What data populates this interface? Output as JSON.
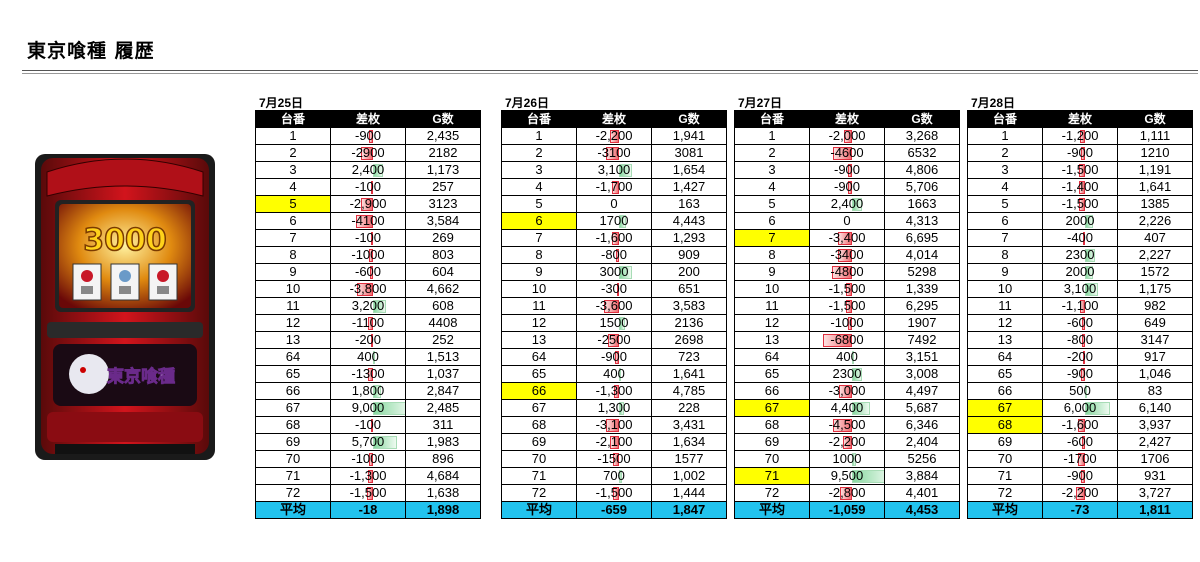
{
  "title": "東京喰種 履歴",
  "headers": {
    "no": "台番",
    "diff": "差枚",
    "g": "G数"
  },
  "avg_label": "平均",
  "colors": {
    "highlight": "#ffff00",
    "avg_row": "#22c3ee",
    "neg_bar": "#f06b70",
    "pos_bar": "#88d8a0"
  },
  "machine_art": {
    "reel_text": "3000",
    "logo_text": "東京喰種"
  },
  "days": [
    {
      "date": "7月25日",
      "rows": [
        {
          "no": "1",
          "diff": "-900",
          "g": "2,435",
          "v": -900,
          "hl": false
        },
        {
          "no": "2",
          "diff": "-2900",
          "g": "2182",
          "v": -2900,
          "hl": false
        },
        {
          "no": "3",
          "diff": "2,400",
          "g": "1,173",
          "v": 2400,
          "hl": false
        },
        {
          "no": "4",
          "diff": "-100",
          "g": "257",
          "v": -100,
          "hl": false
        },
        {
          "no": "5",
          "diff": "-2,900",
          "g": "3123",
          "v": -2900,
          "hl": true
        },
        {
          "no": "6",
          "diff": "-4100",
          "g": "3,584",
          "v": -4100,
          "hl": false
        },
        {
          "no": "7",
          "diff": "-100",
          "g": "269",
          "v": -100,
          "hl": false
        },
        {
          "no": "8",
          "diff": "-1000",
          "g": "803",
          "v": -1000,
          "hl": false
        },
        {
          "no": "9",
          "diff": "-600",
          "g": "604",
          "v": -600,
          "hl": false
        },
        {
          "no": "10",
          "diff": "-3,800",
          "g": "4,662",
          "v": -3800,
          "hl": false
        },
        {
          "no": "11",
          "diff": "3,200",
          "g": "608",
          "v": 3200,
          "hl": false
        },
        {
          "no": "12",
          "diff": "-1100",
          "g": "4408",
          "v": -1100,
          "hl": false
        },
        {
          "no": "13",
          "diff": "-200",
          "g": "252",
          "v": -200,
          "hl": false
        },
        {
          "no": "64",
          "diff": "400",
          "g": "1,513",
          "v": 400,
          "hl": false
        },
        {
          "no": "65",
          "diff": "-1300",
          "g": "1,037",
          "v": -1300,
          "hl": false
        },
        {
          "no": "66",
          "diff": "1,800",
          "g": "2,847",
          "v": 1800,
          "hl": false
        },
        {
          "no": "67",
          "diff": "9,000",
          "g": "2,485",
          "v": 9000,
          "hl": false
        },
        {
          "no": "68",
          "diff": "-100",
          "g": "311",
          "v": -100,
          "hl": false
        },
        {
          "no": "69",
          "diff": "5,700",
          "g": "1,983",
          "v": 5700,
          "hl": false
        },
        {
          "no": "70",
          "diff": "-1000",
          "g": "896",
          "v": -1000,
          "hl": false
        },
        {
          "no": "71",
          "diff": "-1,300",
          "g": "4,684",
          "v": -1300,
          "hl": false
        },
        {
          "no": "72",
          "diff": "-1,500",
          "g": "1,638",
          "v": -1500,
          "hl": false
        }
      ],
      "avg": {
        "diff": "-18",
        "g": "1,898"
      }
    },
    {
      "date": "7月26日",
      "rows": [
        {
          "no": "1",
          "diff": "-2,200",
          "g": "1,941",
          "v": -2200,
          "hl": false
        },
        {
          "no": "2",
          "diff": "-3100",
          "g": "3081",
          "v": -3100,
          "hl": false
        },
        {
          "no": "3",
          "diff": "3,100",
          "g": "1,654",
          "v": 3100,
          "hl": false
        },
        {
          "no": "4",
          "diff": "-1,700",
          "g": "1,427",
          "v": -1700,
          "hl": false
        },
        {
          "no": "5",
          "diff": "0",
          "g": "163",
          "v": 0,
          "hl": false
        },
        {
          "no": "6",
          "diff": "1700",
          "g": "4,443",
          "v": 1700,
          "hl": true
        },
        {
          "no": "7",
          "diff": "-1,600",
          "g": "1,293",
          "v": -1600,
          "hl": false
        },
        {
          "no": "8",
          "diff": "-800",
          "g": "909",
          "v": -800,
          "hl": false
        },
        {
          "no": "9",
          "diff": "3000",
          "g": "200",
          "v": 3000,
          "hl": false
        },
        {
          "no": "10",
          "diff": "-300",
          "g": "651",
          "v": -300,
          "hl": false
        },
        {
          "no": "11",
          "diff": "-3,600",
          "g": "3,583",
          "v": -3600,
          "hl": false
        },
        {
          "no": "12",
          "diff": "1500",
          "g": "2136",
          "v": 1500,
          "hl": false
        },
        {
          "no": "13",
          "diff": "-2500",
          "g": "2698",
          "v": -2500,
          "hl": false
        },
        {
          "no": "64",
          "diff": "-900",
          "g": "723",
          "v": -900,
          "hl": false
        },
        {
          "no": "65",
          "diff": "400",
          "g": "1,641",
          "v": 400,
          "hl": false
        },
        {
          "no": "66",
          "diff": "-1,300",
          "g": "4,785",
          "v": -1300,
          "hl": true
        },
        {
          "no": "67",
          "diff": "1,300",
          "g": "228",
          "v": 1300,
          "hl": false
        },
        {
          "no": "68",
          "diff": "-3,100",
          "g": "3,431",
          "v": -3100,
          "hl": false
        },
        {
          "no": "69",
          "diff": "-2,100",
          "g": "1,634",
          "v": -2100,
          "hl": false
        },
        {
          "no": "70",
          "diff": "-1500",
          "g": "1577",
          "v": -1500,
          "hl": false
        },
        {
          "no": "71",
          "diff": "700",
          "g": "1,002",
          "v": 700,
          "hl": false
        },
        {
          "no": "72",
          "diff": "-1,500",
          "g": "1,444",
          "v": -1500,
          "hl": false
        }
      ],
      "avg": {
        "diff": "-659",
        "g": "1,847"
      }
    },
    {
      "date": "7月27日",
      "rows": [
        {
          "no": "1",
          "diff": "-2,000",
          "g": "3,268",
          "v": -2000,
          "hl": false
        },
        {
          "no": "2",
          "diff": "-4600",
          "g": "6532",
          "v": -4600,
          "hl": false
        },
        {
          "no": "3",
          "diff": "-900",
          "g": "4,806",
          "v": -900,
          "hl": false
        },
        {
          "no": "4",
          "diff": "-900",
          "g": "5,706",
          "v": -900,
          "hl": false
        },
        {
          "no": "5",
          "diff": "2,400",
          "g": "1663",
          "v": 2400,
          "hl": false
        },
        {
          "no": "6",
          "diff": "0",
          "g": "4,313",
          "v": 0,
          "hl": false
        },
        {
          "no": "7",
          "diff": "-3,400",
          "g": "6,695",
          "v": -3400,
          "hl": true
        },
        {
          "no": "8",
          "diff": "-3400",
          "g": "4,014",
          "v": -3400,
          "hl": false
        },
        {
          "no": "9",
          "diff": "-4800",
          "g": "5298",
          "v": -4800,
          "hl": false
        },
        {
          "no": "10",
          "diff": "-1,500",
          "g": "1,339",
          "v": -1500,
          "hl": false
        },
        {
          "no": "11",
          "diff": "-1,500",
          "g": "6,295",
          "v": -1500,
          "hl": false
        },
        {
          "no": "12",
          "diff": "-1000",
          "g": "1907",
          "v": -1000,
          "hl": false
        },
        {
          "no": "13",
          "diff": "-6800",
          "g": "7492",
          "v": -6800,
          "hl": false
        },
        {
          "no": "64",
          "diff": "400",
          "g": "3,151",
          "v": 400,
          "hl": false
        },
        {
          "no": "65",
          "diff": "2300",
          "g": "3,008",
          "v": 2300,
          "hl": false
        },
        {
          "no": "66",
          "diff": "-3,000",
          "g": "4,497",
          "v": -3000,
          "hl": false
        },
        {
          "no": "67",
          "diff": "4,400",
          "g": "5,687",
          "v": 4400,
          "hl": true
        },
        {
          "no": "68",
          "diff": "-4,500",
          "g": "6,346",
          "v": -4500,
          "hl": false
        },
        {
          "no": "69",
          "diff": "-2,200",
          "g": "2,404",
          "v": -2200,
          "hl": false
        },
        {
          "no": "70",
          "diff": "1000",
          "g": "5256",
          "v": 1000,
          "hl": false
        },
        {
          "no": "71",
          "diff": "9,500",
          "g": "3,884",
          "v": 9500,
          "hl": true
        },
        {
          "no": "72",
          "diff": "-2,800",
          "g": "4,401",
          "v": -2800,
          "hl": false
        }
      ],
      "avg": {
        "diff": "-1,059",
        "g": "4,453"
      }
    },
    {
      "date": "7月28日",
      "rows": [
        {
          "no": "1",
          "diff": "-1,200",
          "g": "1,111",
          "v": -1200,
          "hl": false
        },
        {
          "no": "2",
          "diff": "-900",
          "g": "1210",
          "v": -900,
          "hl": false
        },
        {
          "no": "3",
          "diff": "-1,500",
          "g": "1,191",
          "v": -1500,
          "hl": false
        },
        {
          "no": "4",
          "diff": "-1,400",
          "g": "1,641",
          "v": -1400,
          "hl": false
        },
        {
          "no": "5",
          "diff": "-1,500",
          "g": "1385",
          "v": -1500,
          "hl": false
        },
        {
          "no": "6",
          "diff": "2000",
          "g": "2,226",
          "v": 2000,
          "hl": false
        },
        {
          "no": "7",
          "diff": "-400",
          "g": "407",
          "v": -400,
          "hl": false
        },
        {
          "no": "8",
          "diff": "2300",
          "g": "2,227",
          "v": 2300,
          "hl": false
        },
        {
          "no": "9",
          "diff": "2000",
          "g": "1572",
          "v": 2000,
          "hl": false
        },
        {
          "no": "10",
          "diff": "3,100",
          "g": "1,175",
          "v": 3100,
          "hl": false
        },
        {
          "no": "11",
          "diff": "-1,100",
          "g": "982",
          "v": -1100,
          "hl": false
        },
        {
          "no": "12",
          "diff": "-600",
          "g": "649",
          "v": -600,
          "hl": false
        },
        {
          "no": "13",
          "diff": "-800",
          "g": "3147",
          "v": -800,
          "hl": false
        },
        {
          "no": "64",
          "diff": "-200",
          "g": "917",
          "v": -200,
          "hl": false
        },
        {
          "no": "65",
          "diff": "-900",
          "g": "1,046",
          "v": -900,
          "hl": false
        },
        {
          "no": "66",
          "diff": "500",
          "g": "83",
          "v": 500,
          "hl": false
        },
        {
          "no": "67",
          "diff": "6,000",
          "g": "6,140",
          "v": 6000,
          "hl": true
        },
        {
          "no": "68",
          "diff": "-1,600",
          "g": "3,937",
          "v": -1600,
          "hl": true
        },
        {
          "no": "69",
          "diff": "-600",
          "g": "2,427",
          "v": -600,
          "hl": false
        },
        {
          "no": "70",
          "diff": "-1700",
          "g": "1706",
          "v": -1700,
          "hl": false
        },
        {
          "no": "71",
          "diff": "-900",
          "g": "931",
          "v": -900,
          "hl": false
        },
        {
          "no": "72",
          "diff": "-2,200",
          "g": "3,727",
          "v": -2200,
          "hl": false
        }
      ],
      "avg": {
        "diff": "-73",
        "g": "1,811"
      }
    }
  ]
}
